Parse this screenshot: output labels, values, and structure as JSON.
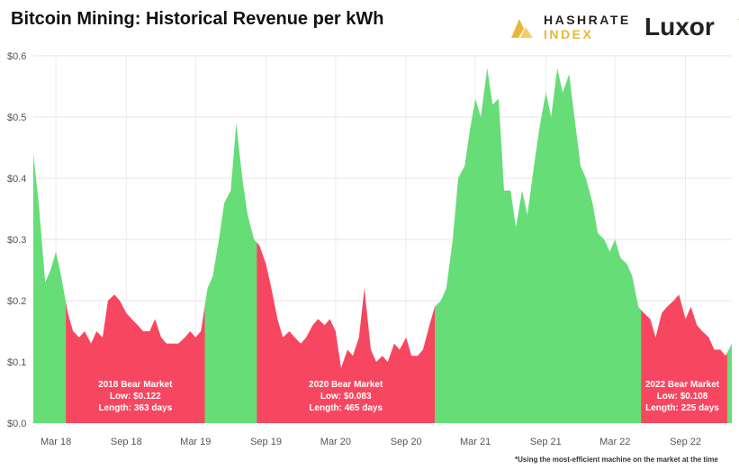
{
  "header": {
    "title": "Bitcoin Mining: Historical Revenue per kWh"
  },
  "logos": {
    "hashrate_line1": "HASHRATE",
    "hashrate_line2": "INDEX",
    "luxor": "Luxor"
  },
  "footnote": "*Using the most-efficient machine on the market at the time",
  "colors": {
    "bull": "#66dd77",
    "bear": "#f74760",
    "gold": "#e8b73a"
  },
  "chart_data": {
    "type": "area",
    "title": "Bitcoin Mining: Historical Revenue per kWh",
    "xlabel": "",
    "ylabel": "",
    "xlim": [
      "2018-01-01",
      "2022-12-31"
    ],
    "ylim": [
      0,
      0.6
    ],
    "y_ticks": [
      "$0.0",
      "$0.1",
      "$0.2",
      "$0.3",
      "$0.4",
      "$0.5",
      "$0.6"
    ],
    "x_ticks": [
      "Mar 18",
      "Sep 18",
      "Mar 19",
      "Sep 19",
      "Mar 20",
      "Sep 20",
      "Mar 21",
      "Sep 21",
      "Mar 22",
      "Sep 22"
    ],
    "x_tick_dates": [
      "2018-03-01",
      "2018-09-01",
      "2019-03-01",
      "2019-09-01",
      "2020-03-01",
      "2020-09-01",
      "2021-03-01",
      "2021-09-01",
      "2022-03-01",
      "2022-09-01"
    ],
    "grid": true,
    "series": [
      {
        "x": [
          "2018-01-01",
          "2018-01-15",
          "2018-02-01",
          "2018-02-15",
          "2018-03-01",
          "2018-03-15",
          "2018-04-01",
          "2018-04-15",
          "2018-05-01",
          "2018-05-15",
          "2018-06-01",
          "2018-06-15",
          "2018-07-01",
          "2018-07-15",
          "2018-08-01",
          "2018-08-15",
          "2018-09-01",
          "2018-09-15",
          "2018-10-01",
          "2018-10-15",
          "2018-11-01",
          "2018-11-15",
          "2018-12-01",
          "2018-12-15",
          "2019-01-01",
          "2019-01-15",
          "2019-02-01",
          "2019-02-15",
          "2019-03-01",
          "2019-03-15",
          "2019-04-01",
          "2019-04-15",
          "2019-05-01",
          "2019-05-15",
          "2019-06-01",
          "2019-06-15",
          "2019-07-01",
          "2019-07-15",
          "2019-08-01",
          "2019-08-15",
          "2019-09-01",
          "2019-09-15",
          "2019-10-01",
          "2019-10-15",
          "2019-11-01",
          "2019-11-15",
          "2019-12-01",
          "2019-12-15",
          "2020-01-01",
          "2020-01-15",
          "2020-02-01",
          "2020-02-15",
          "2020-03-01",
          "2020-03-15",
          "2020-04-01",
          "2020-04-15",
          "2020-05-01",
          "2020-05-15",
          "2020-06-01",
          "2020-06-15",
          "2020-07-01",
          "2020-07-15",
          "2020-08-01",
          "2020-08-15",
          "2020-09-01",
          "2020-09-15",
          "2020-10-01",
          "2020-10-15",
          "2020-11-01",
          "2020-11-15",
          "2020-12-01",
          "2020-12-15",
          "2021-01-01",
          "2021-01-15",
          "2021-02-01",
          "2021-02-15",
          "2021-03-01",
          "2021-03-15",
          "2021-04-01",
          "2021-04-15",
          "2021-05-01",
          "2021-05-15",
          "2021-06-01",
          "2021-06-15",
          "2021-07-01",
          "2021-07-15",
          "2021-08-01",
          "2021-08-15",
          "2021-09-01",
          "2021-09-15",
          "2021-10-01",
          "2021-10-15",
          "2021-11-01",
          "2021-11-15",
          "2021-12-01",
          "2021-12-15",
          "2022-01-01",
          "2022-01-15",
          "2022-02-01",
          "2022-02-15",
          "2022-03-01",
          "2022-03-15",
          "2022-04-01",
          "2022-04-15",
          "2022-05-01",
          "2022-05-15",
          "2022-06-01",
          "2022-06-15",
          "2022-07-01",
          "2022-07-15",
          "2022-08-01",
          "2022-08-15",
          "2022-09-01",
          "2022-09-15",
          "2022-10-01",
          "2022-10-15",
          "2022-11-01",
          "2022-11-15",
          "2022-12-01",
          "2022-12-15",
          "2022-12-31"
        ],
        "values": [
          0.44,
          0.36,
          0.23,
          0.25,
          0.28,
          0.24,
          0.18,
          0.15,
          0.14,
          0.15,
          0.13,
          0.15,
          0.14,
          0.2,
          0.21,
          0.2,
          0.18,
          0.17,
          0.16,
          0.15,
          0.15,
          0.17,
          0.14,
          0.13,
          0.13,
          0.13,
          0.14,
          0.15,
          0.14,
          0.15,
          0.22,
          0.24,
          0.3,
          0.36,
          0.38,
          0.49,
          0.4,
          0.34,
          0.3,
          0.29,
          0.26,
          0.22,
          0.17,
          0.14,
          0.15,
          0.14,
          0.13,
          0.14,
          0.16,
          0.17,
          0.16,
          0.17,
          0.15,
          0.09,
          0.12,
          0.11,
          0.14,
          0.22,
          0.12,
          0.1,
          0.11,
          0.1,
          0.13,
          0.12,
          0.14,
          0.11,
          0.11,
          0.12,
          0.16,
          0.19,
          0.2,
          0.22,
          0.3,
          0.4,
          0.42,
          0.48,
          0.53,
          0.5,
          0.58,
          0.52,
          0.53,
          0.38,
          0.38,
          0.32,
          0.38,
          0.34,
          0.42,
          0.48,
          0.54,
          0.5,
          0.58,
          0.54,
          0.57,
          0.5,
          0.42,
          0.4,
          0.36,
          0.31,
          0.3,
          0.28,
          0.3,
          0.27,
          0.26,
          0.24,
          0.19,
          0.18,
          0.17,
          0.14,
          0.18,
          0.19,
          0.2,
          0.21,
          0.17,
          0.19,
          0.16,
          0.15,
          0.14,
          0.12,
          0.12,
          0.11,
          0.13
        ]
      }
    ],
    "regions": [
      {
        "start": "2018-01-01",
        "end": "2018-03-27",
        "type": "bull"
      },
      {
        "start": "2018-03-27",
        "end": "2019-03-25",
        "type": "bear",
        "label": "2018 Bear Market",
        "low": "Low: $0.122",
        "length": "Length: 363 days"
      },
      {
        "start": "2019-03-25",
        "end": "2019-08-08",
        "type": "bull"
      },
      {
        "start": "2019-08-08",
        "end": "2020-11-15",
        "type": "bear",
        "label": "2020 Bear Market",
        "low": "Low: $0.083",
        "length": "Length: 465 days"
      },
      {
        "start": "2020-11-15",
        "end": "2022-05-08",
        "type": "bull"
      },
      {
        "start": "2022-05-08",
        "end": "2022-12-19",
        "type": "bear",
        "label": "2022 Bear Market",
        "low": "Low: $0.108",
        "length": "Length: 225 days"
      },
      {
        "start": "2022-12-19",
        "end": "2022-12-31",
        "type": "bull"
      }
    ]
  }
}
